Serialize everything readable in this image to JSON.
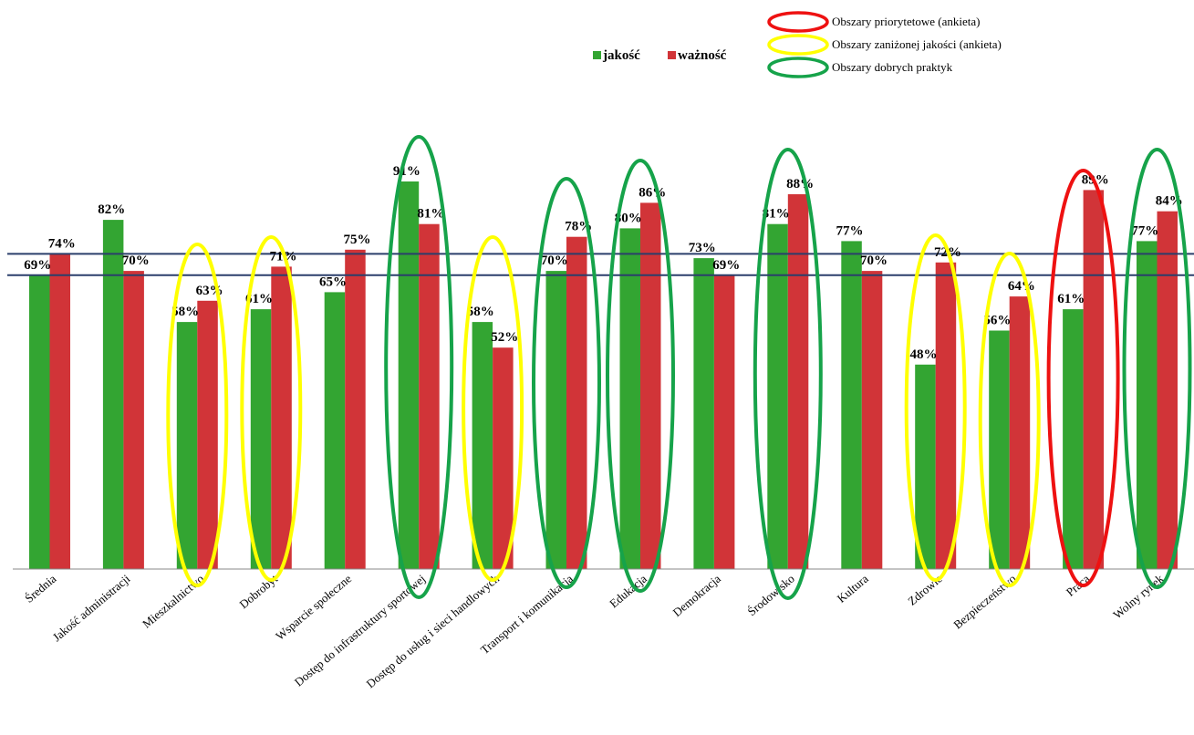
{
  "chart_data": {
    "type": "bar",
    "title": "",
    "xlabel": "",
    "ylabel": "",
    "ylim": [
      0,
      100
    ],
    "categories": [
      "Średnia",
      "Jakość administracji",
      "Mieszkalnictwo",
      "Dobrobyt",
      "Wsparcie społeczne",
      "Dostęp do infrastruktury sportowej",
      "Dostęp do usług i sieci handlowych",
      "Transport i komunikacja",
      "Edukacja",
      "Demokracja",
      "Środowisko",
      "Kultura",
      "Zdrowie",
      "Bezpieczeństwo",
      "Praca",
      "Wolny rynek"
    ],
    "series": [
      {
        "name": "jakość",
        "color": "#33a532",
        "values": [
          69,
          82,
          58,
          61,
          65,
          91,
          58,
          70,
          80,
          73,
          81,
          77,
          48,
          56,
          61,
          77
        ],
        "labels": [
          "69%",
          "82%",
          "58%",
          "61%",
          "65%",
          "91%",
          "58%",
          "70%",
          "80%",
          "73%",
          "81%",
          "77%",
          "48%",
          "56%",
          "61%",
          "77%"
        ]
      },
      {
        "name": "ważność",
        "color": "#d13438",
        "values": [
          74,
          70,
          63,
          71,
          75,
          81,
          52,
          78,
          86,
          69,
          88,
          70,
          72,
          64,
          89,
          84
        ],
        "labels": [
          "74%",
          "70%",
          "63%",
          "71%",
          "75%",
          "81%",
          "52%",
          "78%",
          "86%",
          "69%",
          "88%",
          "70%",
          "72%",
          "64%",
          "89%",
          "84%"
        ]
      }
    ],
    "reference_lines": [
      {
        "value": 74,
        "color": "#2b3f6b"
      },
      {
        "value": 69,
        "color": "#2b3f6b"
      }
    ],
    "highlights": [
      {
        "category_index": 2,
        "type": "yellow"
      },
      {
        "category_index": 3,
        "type": "yellow"
      },
      {
        "category_index": 5,
        "type": "green"
      },
      {
        "category_index": 6,
        "type": "yellow"
      },
      {
        "category_index": 7,
        "type": "green"
      },
      {
        "category_index": 8,
        "type": "green"
      },
      {
        "category_index": 10,
        "type": "green"
      },
      {
        "category_index": 12,
        "type": "yellow"
      },
      {
        "category_index": 13,
        "type": "yellow"
      },
      {
        "category_index": 14,
        "type": "red"
      },
      {
        "category_index": 15,
        "type": "green"
      }
    ],
    "legend": {
      "series_entries": [
        "jakość",
        "ważność"
      ],
      "ellipse_entries": [
        {
          "type": "red",
          "color": "#ee1111",
          "label": "Obszary priorytetowe (ankieta)"
        },
        {
          "type": "yellow",
          "color": "#ffff00",
          "label": "Obszary zaniżonej jakości (ankieta)"
        },
        {
          "type": "green",
          "color": "#16a34a",
          "label": "Obszary dobrych praktyk"
        }
      ],
      "placement": "top"
    }
  }
}
